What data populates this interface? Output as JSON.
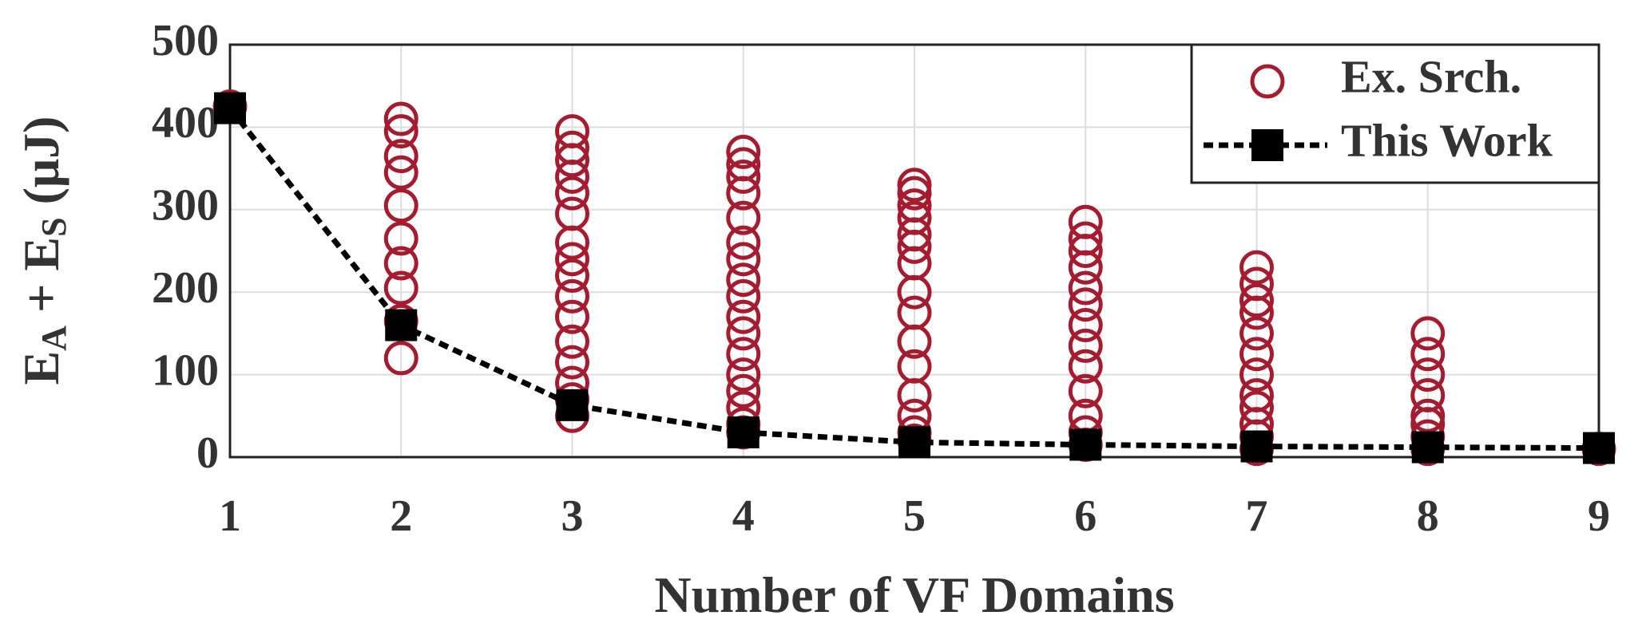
{
  "chart_data": {
    "type": "scatter-line",
    "x_label": "Number of VF Domains",
    "y_label": [
      "E",
      "A",
      " + E",
      "S",
      " (μJ)"
    ],
    "xlim": [
      1,
      9
    ],
    "xticks": [
      1,
      2,
      3,
      4,
      5,
      6,
      7,
      8,
      9
    ],
    "ylim": [
      0,
      500
    ],
    "yticks": [
      0,
      100,
      200,
      300,
      400,
      500
    ],
    "grid": true,
    "legend": "top-right",
    "series": [
      {
        "name": "Ex. Srch.",
        "kind": "scatter",
        "color": "#a51c30",
        "x": [
          1,
          2,
          2,
          2,
          2,
          2,
          2,
          2,
          2,
          2,
          2,
          3,
          3,
          3,
          3,
          3,
          3,
          3,
          3,
          3,
          3,
          3,
          3,
          3,
          3,
          3,
          3,
          4,
          4,
          4,
          4,
          4,
          4,
          4,
          4,
          4,
          4,
          4,
          4,
          4,
          4,
          4,
          4,
          4,
          5,
          5,
          5,
          5,
          5,
          5,
          5,
          5,
          5,
          5,
          5,
          5,
          5,
          5,
          5,
          6,
          6,
          6,
          6,
          6,
          6,
          6,
          6,
          6,
          6,
          6,
          6,
          6,
          7,
          7,
          7,
          7,
          7,
          7,
          7,
          7,
          7,
          7,
          7,
          7,
          8,
          8,
          8,
          8,
          8,
          8,
          8,
          8,
          9
        ],
        "values": [
          425,
          410,
          395,
          365,
          345,
          305,
          265,
          235,
          205,
          165,
          120,
          395,
          375,
          360,
          340,
          320,
          295,
          260,
          240,
          220,
          195,
          170,
          140,
          115,
          90,
          70,
          50,
          370,
          355,
          340,
          320,
          290,
          260,
          240,
          215,
          195,
          170,
          150,
          125,
          100,
          80,
          60,
          40,
          30,
          330,
          320,
          305,
          290,
          270,
          255,
          235,
          200,
          175,
          140,
          110,
          75,
          50,
          30,
          20,
          285,
          265,
          250,
          230,
          205,
          185,
          160,
          135,
          110,
          80,
          50,
          30,
          15,
          230,
          210,
          190,
          175,
          150,
          125,
          100,
          75,
          60,
          40,
          25,
          10,
          150,
          125,
          100,
          75,
          50,
          40,
          25,
          10,
          10
        ]
      },
      {
        "name": "This Work",
        "kind": "line",
        "color": "#000000",
        "x": [
          1,
          2,
          3,
          4,
          5,
          6,
          7,
          8,
          9
        ],
        "values": [
          423,
          160,
          63,
          30,
          18,
          15,
          13,
          12,
          11
        ]
      }
    ]
  }
}
